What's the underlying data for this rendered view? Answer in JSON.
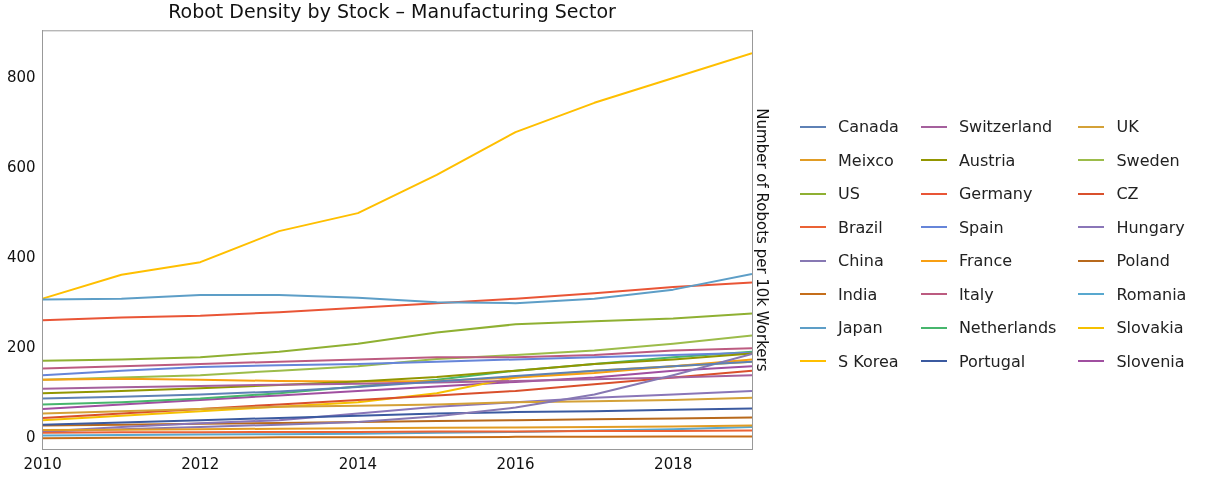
{
  "chart_data": {
    "type": "line",
    "title": "Robot Density by Stock – Manufacturing Sector",
    "ylabel": "Number of Robots per 10k Workers",
    "x": [
      2010,
      2011,
      2012,
      2013,
      2014,
      2015,
      2016,
      2017,
      2018,
      2019
    ],
    "xlim": [
      2010,
      2019
    ],
    "xticks": [
      2010,
      2012,
      2014,
      2016,
      2018
    ],
    "ylim": [
      -24,
      905
    ],
    "yticks": [
      0,
      200,
      400,
      600,
      800
    ],
    "grid": false,
    "legend": "right",
    "marker": "none",
    "line_style": "solid",
    "series": [
      {
        "name": "Canada",
        "color": "#5e81b5",
        "values": [
          88,
          92,
          97,
          104,
          114,
          126,
          138,
          150,
          160,
          170
        ]
      },
      {
        "name": "Meixco",
        "color": "#e19c24",
        "values": [
          18,
          19,
          20,
          21,
          22,
          23,
          24,
          25,
          26,
          28
        ]
      },
      {
        "name": "US",
        "color": "#8fb032",
        "values": [
          172,
          175,
          180,
          192,
          210,
          235,
          253,
          260,
          266,
          277
        ]
      },
      {
        "name": "Brazil",
        "color": "#eb6235",
        "values": [
          12,
          13,
          13,
          14,
          14,
          15,
          15,
          16,
          16,
          17
        ]
      },
      {
        "name": "China",
        "color": "#8778b3",
        "values": [
          15,
          20,
          25,
          30,
          36,
          49,
          68,
          97,
          140,
          187
        ]
      },
      {
        "name": "India",
        "color": "#c56e1a",
        "values": [
          0,
          1,
          1,
          2,
          2,
          2,
          3,
          3,
          4,
          4
        ]
      },
      {
        "name": "Japan",
        "color": "#5d9ec7",
        "values": [
          308,
          310,
          318,
          318,
          312,
          302,
          300,
          310,
          330,
          365
        ]
      },
      {
        "name": "S Korea",
        "color": "#ffbf00",
        "values": [
          310,
          363,
          391,
          460,
          500,
          585,
          680,
          745,
          800,
          855
        ]
      },
      {
        "name": "Switzerland",
        "color": "#a5609d",
        "values": [
          110,
          113,
          116,
          119,
          121,
          124,
          127,
          131,
          135,
          140
        ]
      },
      {
        "name": "Austria",
        "color": "#929600",
        "values": [
          100,
          105,
          111,
          118,
          126,
          136,
          150,
          165,
          175,
          188
        ]
      },
      {
        "name": "Germany",
        "color": "#e95536",
        "values": [
          262,
          268,
          272,
          280,
          290,
          300,
          310,
          322,
          336,
          346
        ]
      },
      {
        "name": "Spain",
        "color": "#6685d9",
        "values": [
          140,
          150,
          158,
          162,
          165,
          170,
          175,
          180,
          185,
          190
        ]
      },
      {
        "name": "France",
        "color": "#f89f13",
        "values": [
          130,
          132,
          130,
          127,
          126,
          127,
          135,
          145,
          160,
          175
        ]
      },
      {
        "name": "Italy",
        "color": "#bc5b80",
        "values": [
          155,
          160,
          165,
          170,
          175,
          180,
          180,
          185,
          195,
          200
        ]
      },
      {
        "name": "Netherlands",
        "color": "#47b66d",
        "values": [
          75,
          80,
          88,
          100,
          115,
          130,
          150,
          165,
          180,
          192
        ]
      },
      {
        "name": "Portugal",
        "color": "#3b5aa0",
        "values": [
          30,
          35,
          40,
          45,
          50,
          55,
          58,
          60,
          63,
          66
        ]
      },
      {
        "name": "UK",
        "color": "#d4a137",
        "values": [
          55,
          60,
          65,
          70,
          72,
          75,
          80,
          82,
          85,
          90
        ]
      },
      {
        "name": "Sweden",
        "color": "#9cbc4a",
        "values": [
          130,
          135,
          140,
          150,
          160,
          176,
          185,
          195,
          210,
          228
        ]
      },
      {
        "name": "CZ",
        "color": "#d9502c",
        "values": [
          45,
          55,
          65,
          75,
          85,
          95,
          105,
          120,
          135,
          150
        ]
      },
      {
        "name": "Hungary",
        "color": "#8a76b8",
        "values": [
          15,
          25,
          33,
          40,
          55,
          70,
          80,
          90,
          97,
          105
        ]
      },
      {
        "name": "Poland",
        "color": "#b8691c",
        "values": [
          28,
          30,
          32,
          34,
          36,
          38,
          40,
          42,
          44,
          46
        ]
      },
      {
        "name": "Romania",
        "color": "#58a8cf",
        "values": [
          6,
          7,
          8,
          9,
          10,
          12,
          14,
          17,
          20,
          25
        ]
      },
      {
        "name": "Slovakia",
        "color": "#f5c000",
        "values": [
          40,
          50,
          60,
          70,
          80,
          100,
          135,
          150,
          160,
          170
        ]
      },
      {
        "name": "Slovenia",
        "color": "#a04fa0",
        "values": [
          65,
          75,
          85,
          95,
          105,
          115,
          125,
          135,
          150,
          160
        ]
      }
    ]
  }
}
